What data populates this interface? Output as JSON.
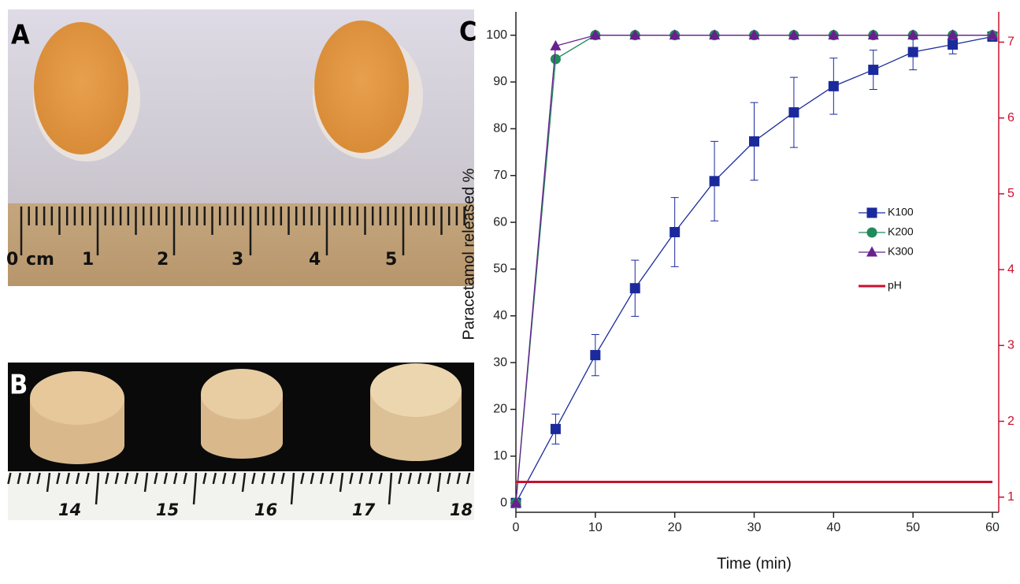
{
  "panels": {
    "A": {
      "label": "A",
      "ruler_labels": [
        "0",
        "cm",
        "1",
        "2",
        "3",
        "4",
        "5"
      ]
    },
    "B": {
      "label": "B",
      "ruler_labels": [
        "14",
        "15",
        "16",
        "17",
        "18"
      ]
    },
    "C": {
      "label": "C"
    }
  },
  "chart_data": {
    "type": "line",
    "y_label": "Paracetamol released %",
    "x_label": "Time (min)",
    "x": [
      0,
      5,
      10,
      15,
      20,
      25,
      30,
      35,
      40,
      45,
      50,
      55,
      60
    ],
    "xlim": [
      0,
      60
    ],
    "xticks": [
      0,
      10,
      20,
      30,
      40,
      50,
      60
    ],
    "ylim": [
      -2,
      105
    ],
    "yticks": [
      0,
      10,
      20,
      30,
      40,
      50,
      60,
      70,
      80,
      90,
      100
    ],
    "y2lim": [
      0.8,
      7.4
    ],
    "y2ticks": [
      1,
      2,
      3,
      4,
      5,
      6,
      7
    ],
    "y2color": "#c8102e",
    "legend": "right",
    "series": [
      {
        "name": "K100",
        "color": "#1a2a9c",
        "marker": "square",
        "values": [
          0,
          15.8,
          31.6,
          45.9,
          57.9,
          68.8,
          77.3,
          83.5,
          89.1,
          92.6,
          96.4,
          98,
          99.7
        ],
        "errors": [
          0,
          3.2,
          4.4,
          6,
          7.4,
          8.5,
          8.3,
          7.5,
          6,
          4.2,
          3.8,
          2,
          0.5
        ]
      },
      {
        "name": "K200",
        "color": "#1f8a5a",
        "marker": "circle",
        "values": [
          0,
          94.9,
          100,
          100,
          100,
          100,
          100,
          100,
          100,
          100,
          100,
          100,
          100
        ]
      },
      {
        "name": "K300",
        "color": "#6a1f8f",
        "marker": "triangle",
        "values": [
          0,
          97.7,
          100,
          100,
          100,
          100,
          100,
          100,
          100,
          100,
          100,
          100,
          100
        ]
      },
      {
        "name": "pH",
        "color": "#c8102e",
        "marker": "none",
        "axis": "y2",
        "values": [
          1.2,
          1.2,
          1.2,
          1.2,
          1.2,
          1.2,
          1.2,
          1.2,
          1.2,
          1.2,
          1.2,
          1.2,
          1.2
        ]
      }
    ]
  }
}
